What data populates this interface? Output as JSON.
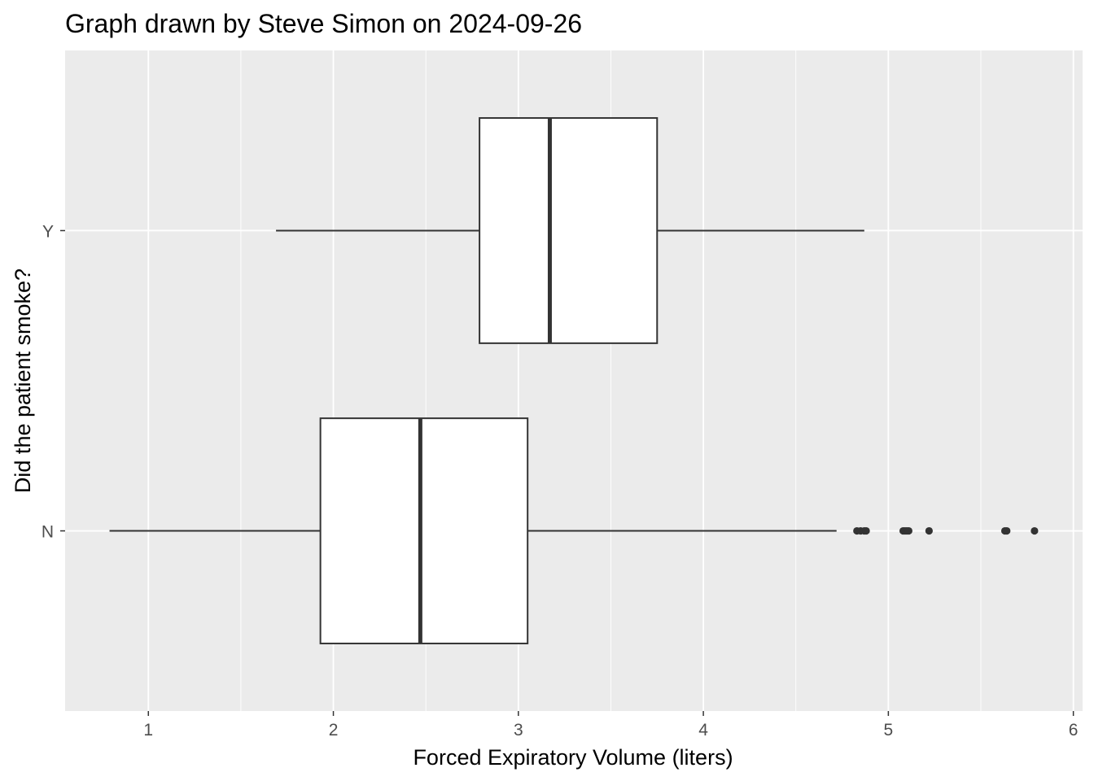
{
  "chart_data": {
    "type": "boxplot",
    "orientation": "horizontal",
    "title": "Graph drawn by Steve Simon on 2024-09-26",
    "xlabel": "Forced Expiratory Volume (liters)",
    "ylabel": "Did the patient smoke?",
    "xlim": [
      0.55,
      6.05
    ],
    "x_ticks": [
      "1",
      "2",
      "3",
      "4",
      "5",
      "6"
    ],
    "categories": [
      "N",
      "Y"
    ],
    "grid": true,
    "legend": "none",
    "colors": {
      "panel_bg": "#EBEBEB",
      "grid_major": "#FFFFFF",
      "box_fill": "#FFFFFF",
      "box_line": "#333333",
      "tick_text": "#4D4D4D"
    },
    "series": [
      {
        "category": "N",
        "whisker_low": 0.79,
        "q1": 1.93,
        "median": 2.47,
        "q3": 3.05,
        "whisker_high": 4.72,
        "outliers": [
          4.83,
          4.85,
          4.87,
          4.88,
          5.08,
          5.09,
          5.1,
          5.11,
          5.22,
          5.63,
          5.64,
          5.79
        ]
      },
      {
        "category": "Y",
        "whisker_low": 1.69,
        "q1": 2.79,
        "median": 3.17,
        "q3": 3.75,
        "whisker_high": 4.87,
        "outliers": []
      }
    ]
  }
}
